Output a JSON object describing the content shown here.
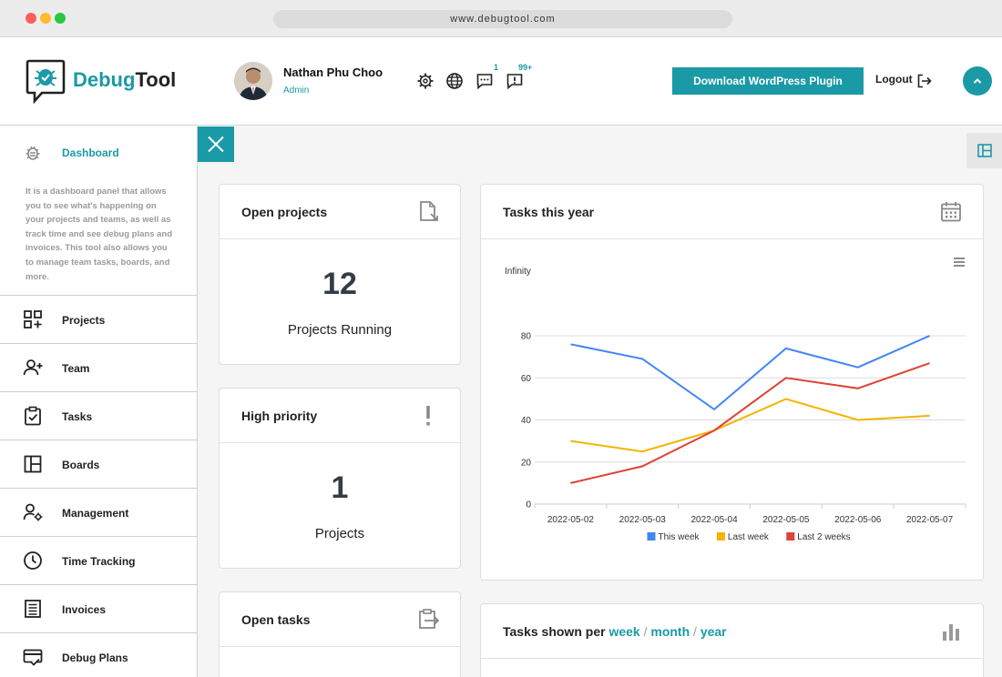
{
  "browser": {
    "url": "www.debugtool.com"
  },
  "header": {
    "brand_part1": "Debug",
    "brand_part2": "Tool",
    "user_name": "Nathan Phu Choo",
    "user_role": "Admin",
    "chat_badge": "1",
    "alerts_badge": "99+",
    "download_label": "Download WordPress Plugin",
    "logout_label": "Logout"
  },
  "sidebar": {
    "dashboard_label": "Dashboard",
    "description": "It is a dashboard panel that allows you to see what's happening on your projects and teams, as well as track time and see debug plans and invoices. This tool also allows you to manage team tasks, boards, and more.",
    "items": [
      {
        "label": "Projects",
        "icon": "projects-icon"
      },
      {
        "label": "Team",
        "icon": "team-icon"
      },
      {
        "label": "Tasks",
        "icon": "tasks-icon"
      },
      {
        "label": "Boards",
        "icon": "boards-icon"
      },
      {
        "label": "Management",
        "icon": "management-icon"
      },
      {
        "label": "Time Tracking",
        "icon": "clock-icon"
      },
      {
        "label": "Invoices",
        "icon": "invoice-icon"
      },
      {
        "label": "Debug Plans",
        "icon": "debug-plans-icon"
      }
    ]
  },
  "cards": {
    "open_projects": {
      "title": "Open projects",
      "value": "12",
      "label": "Projects Running"
    },
    "high_priority": {
      "title": "High priority",
      "value": "1",
      "label": "Projects"
    },
    "open_tasks": {
      "title": "Open tasks"
    },
    "tasks_year": {
      "title": "Tasks this year"
    },
    "tasks_per": {
      "prefix": "Tasks shown per",
      "week": "week",
      "month": "month",
      "year": "year",
      "sep": "/"
    }
  },
  "colors": {
    "accent": "#1a9aa6",
    "this_week": "#4285f4",
    "last_week": "#f4b400",
    "last_2_weeks": "#db4437"
  },
  "chart_data": {
    "type": "line",
    "title": "",
    "top_label": "Infinity",
    "x": [
      "2022-05-02",
      "2022-05-03",
      "2022-05-04",
      "2022-05-05",
      "2022-05-06",
      "2022-05-07"
    ],
    "y_ticks": [
      0,
      20,
      40,
      60,
      80
    ],
    "ylim": [
      0,
      80
    ],
    "grid": true,
    "legend_position": "bottom",
    "series": [
      {
        "name": "This week",
        "color": "#4285f4",
        "values": [
          76,
          69,
          45,
          74,
          65,
          80
        ]
      },
      {
        "name": "Last week",
        "color": "#f4b400",
        "values": [
          30,
          25,
          35,
          50,
          40,
          42
        ]
      },
      {
        "name": "Last 2 weeks",
        "color": "#db4437",
        "values": [
          10,
          18,
          35,
          60,
          55,
          67
        ]
      }
    ]
  }
}
